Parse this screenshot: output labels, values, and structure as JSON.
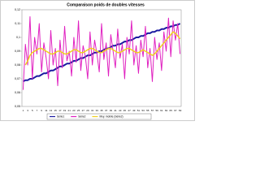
{
  "chart_data": {
    "type": "line",
    "title": "Comparaison poids de doubles vitesses",
    "categories": [
      1,
      null,
      3,
      null,
      5,
      null,
      7,
      null,
      9,
      null,
      11,
      null,
      13,
      null,
      15,
      null,
      17,
      null,
      19,
      null,
      21,
      null,
      23,
      null,
      25,
      null,
      27,
      null,
      29,
      null,
      31,
      null,
      33,
      null,
      35,
      null,
      37,
      null,
      39,
      null,
      41,
      null,
      43,
      null,
      45,
      null,
      47,
      null,
      49,
      null,
      51,
      null,
      53,
      null,
      55,
      null,
      57,
      null,
      59,
      null,
      61,
      null,
      63,
      null,
      65,
      null,
      67,
      null,
      69
    ],
    "ylim": [
      0.05,
      0.12
    ],
    "yticks": [
      {
        "value": 0.05,
        "label": "0,05"
      },
      {
        "value": 0.06,
        "label": "0,06"
      },
      {
        "value": 0.07,
        "label": "0,07"
      },
      {
        "value": 0.08,
        "label": "0,08"
      },
      {
        "value": 0.09,
        "label": "0,09"
      },
      {
        "value": 0.1,
        "label": "0,1"
      },
      {
        "value": 0.11,
        "label": "0,11"
      },
      {
        "value": 0.12,
        "label": "0,12"
      }
    ],
    "legend": "bottom",
    "series": [
      {
        "name": "Série1",
        "color": "#1a1aa0",
        "width": 2,
        "values": [
          0.068,
          0.069,
          0.069,
          0.07,
          0.07,
          0.071,
          0.072,
          0.072,
          0.073,
          0.074,
          0.074,
          0.075,
          0.076,
          0.076,
          0.077,
          0.078,
          0.079,
          0.079,
          0.08,
          0.081,
          0.081,
          0.082,
          0.083,
          0.083,
          0.084,
          0.085,
          0.085,
          0.086,
          0.087,
          0.087,
          0.088,
          0.089,
          0.089,
          0.09,
          0.09,
          0.091,
          0.092,
          0.092,
          0.093,
          0.094,
          0.094,
          0.095,
          0.095,
          0.096,
          0.097,
          0.097,
          0.098,
          0.098,
          0.099,
          0.1,
          0.1,
          0.101,
          0.101,
          0.102,
          0.103,
          0.103,
          0.104,
          0.104,
          0.105,
          0.105,
          0.106,
          0.106,
          0.107,
          0.107,
          0.108,
          0.108,
          0.109,
          0.109,
          0.11
        ]
      },
      {
        "name": "Série2",
        "color": "#e020c0",
        "width": 1,
        "values": [
          0.062,
          0.095,
          0.08,
          0.115,
          0.07,
          0.1,
          0.088,
          0.11,
          0.075,
          0.096,
          0.085,
          0.07,
          0.105,
          0.08,
          0.092,
          0.065,
          0.098,
          0.078,
          0.108,
          0.083,
          0.09,
          0.072,
          0.1,
          0.082,
          0.112,
          0.076,
          0.094,
          0.086,
          0.07,
          0.104,
          0.08,
          0.098,
          0.088,
          0.075,
          0.11,
          0.084,
          0.096,
          0.072,
          0.102,
          0.09,
          0.078,
          0.106,
          0.085,
          0.095,
          0.07,
          0.1,
          0.088,
          0.112,
          0.08,
          0.094,
          0.074,
          0.098,
          0.086,
          0.108,
          0.078,
          0.092,
          0.068,
          0.1,
          0.084,
          0.096,
          0.076,
          0.104,
          0.09,
          0.114,
          0.086,
          0.112,
          0.098,
          0.11,
          0.088
        ]
      },
      {
        "name": "Moy. mobile (Série2)",
        "color": "#f0d020",
        "width": 1.5,
        "values": [
          null,
          0.08,
          0.083,
          0.087,
          0.089,
          0.09,
          0.091,
          0.092,
          0.092,
          0.091,
          0.09,
          0.089,
          0.088,
          0.088,
          0.089,
          0.09,
          0.09,
          0.089,
          0.088,
          0.088,
          0.089,
          0.09,
          0.091,
          0.091,
          0.09,
          0.089,
          0.089,
          0.09,
          0.091,
          0.092,
          0.092,
          0.091,
          0.09,
          0.089,
          0.089,
          0.09,
          0.091,
          0.092,
          0.092,
          0.091,
          0.09,
          0.089,
          0.089,
          0.09,
          0.091,
          0.092,
          0.092,
          0.091,
          0.09,
          0.089,
          0.089,
          0.09,
          0.091,
          0.09,
          0.089,
          0.088,
          0.087,
          0.088,
          0.09,
          0.092,
          0.094,
          0.096,
          0.098,
          0.1,
          0.102,
          0.104,
          0.103,
          0.101,
          0.099
        ]
      }
    ]
  }
}
